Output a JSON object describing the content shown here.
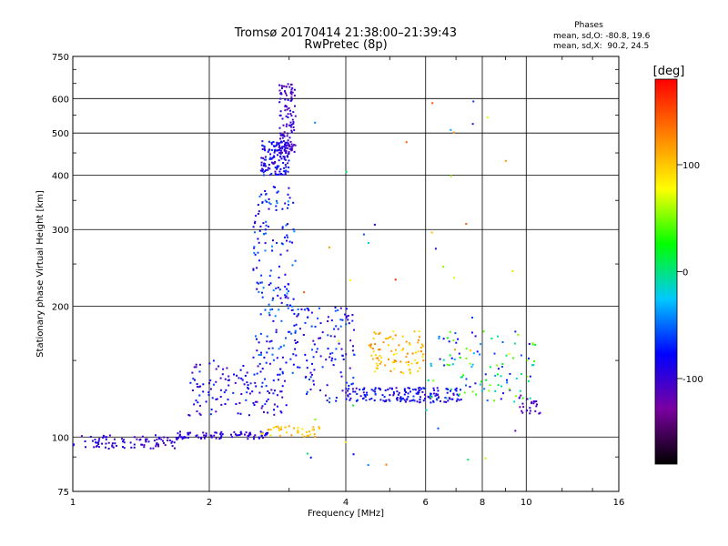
{
  "header": {
    "title": "Tromsø 20170414 21:38:00–21:39:43",
    "subtitle": "RwPretec (8p)"
  },
  "phases_box": {
    "heading": "Phases",
    "line_o": "mean, sd,O: -80.8, 19.6",
    "line_x": "mean, sd,X:  90.2, 24.5"
  },
  "colorbar": {
    "unit_label": "[deg]",
    "range": [
      -180,
      180
    ],
    "ticks": [
      {
        "value": 100,
        "label": "100"
      },
      {
        "value": 0,
        "label": "0"
      },
      {
        "value": -100,
        "label": "-100"
      }
    ],
    "stops": [
      "#000000",
      "#7a00a0",
      "#0000ff",
      "#00c8ff",
      "#00ff00",
      "#ffff00",
      "#ff8000",
      "#ff0000"
    ]
  },
  "chart_data": {
    "type": "scatter",
    "title": "Tromsø 20170414 21:38:00–21:39:43",
    "subtitle": "RwPretec (8p)",
    "xlabel": "Frequency [MHz]",
    "ylabel": "Stationary phase Virtual Height [km]",
    "x_scale": "log",
    "y_scale": "log",
    "xlim": [
      1,
      16
    ],
    "ylim": [
      75,
      750
    ],
    "grid": true,
    "x_ticks": [
      {
        "value": 1,
        "label": "1"
      },
      {
        "value": 2,
        "label": "2"
      },
      {
        "value": 4,
        "label": "4"
      },
      {
        "value": 6,
        "label": "6"
      },
      {
        "value": 8,
        "label": "8"
      },
      {
        "value": 10,
        "label": "10"
      },
      {
        "value": 16,
        "label": "16"
      }
    ],
    "y_ticks": [
      {
        "value": 75,
        "label": "75"
      },
      {
        "value": 100,
        "label": "100"
      },
      {
        "value": 200,
        "label": "200"
      },
      {
        "value": 300,
        "label": "300"
      },
      {
        "value": 400,
        "label": "400"
      },
      {
        "value": 500,
        "label": "500"
      },
      {
        "value": 600,
        "label": "600"
      },
      {
        "value": 750,
        "label": "750"
      }
    ],
    "color_axis": {
      "label": "[deg]",
      "range": [
        -180,
        180
      ]
    },
    "clusters": [
      {
        "x_range": [
          1.0,
          1.7
        ],
        "y_range": [
          94,
          101
        ],
        "phase_range": [
          -115,
          -85
        ],
        "count": 90
      },
      {
        "x_range": [
          1.7,
          2.7
        ],
        "y_range": [
          99,
          103
        ],
        "phase_range": [
          -110,
          -80
        ],
        "count": 80
      },
      {
        "x_range": [
          2.6,
          3.5
        ],
        "y_range": [
          100,
          106
        ],
        "phase_range": [
          80,
          120
        ],
        "count": 40
      },
      {
        "x_range": [
          1.8,
          3.0
        ],
        "y_range": [
          112,
          150
        ],
        "phase_range": [
          -115,
          -60
        ],
        "count": 140
      },
      {
        "x_range": [
          2.5,
          3.1
        ],
        "y_range": [
          150,
          380
        ],
        "phase_range": [
          -100,
          -40
        ],
        "count": 170
      },
      {
        "x_range": [
          2.6,
          3.0
        ],
        "y_range": [
          400,
          480
        ],
        "phase_range": [
          -110,
          -60
        ],
        "count": 140
      },
      {
        "x_range": [
          2.85,
          3.1
        ],
        "y_range": [
          450,
          650
        ],
        "phase_range": [
          -120,
          -90
        ],
        "count": 110
      },
      {
        "x_range": [
          3.0,
          4.2
        ],
        "y_range": [
          120,
          200
        ],
        "phase_range": [
          -110,
          -50
        ],
        "count": 130
      },
      {
        "x_range": [
          4.0,
          7.2
        ],
        "y_range": [
          120,
          130
        ],
        "phase_range": [
          -110,
          -60
        ],
        "count": 160
      },
      {
        "x_range": [
          4.5,
          6.0
        ],
        "y_range": [
          140,
          175
        ],
        "phase_range": [
          80,
          130
        ],
        "count": 90
      },
      {
        "x_range": [
          6.0,
          10.5
        ],
        "y_range": [
          120,
          175
        ],
        "phase_range": [
          -100,
          60
        ],
        "count": 110
      },
      {
        "x_range": [
          9.6,
          10.8
        ],
        "y_range": [
          112,
          125
        ],
        "phase_range": [
          -120,
          -90
        ],
        "count": 25
      },
      {
        "x_range": [
          3.2,
          9.5
        ],
        "y_range": [
          85,
          600
        ],
        "phase_range": [
          -120,
          170
        ],
        "count": 45
      }
    ]
  }
}
